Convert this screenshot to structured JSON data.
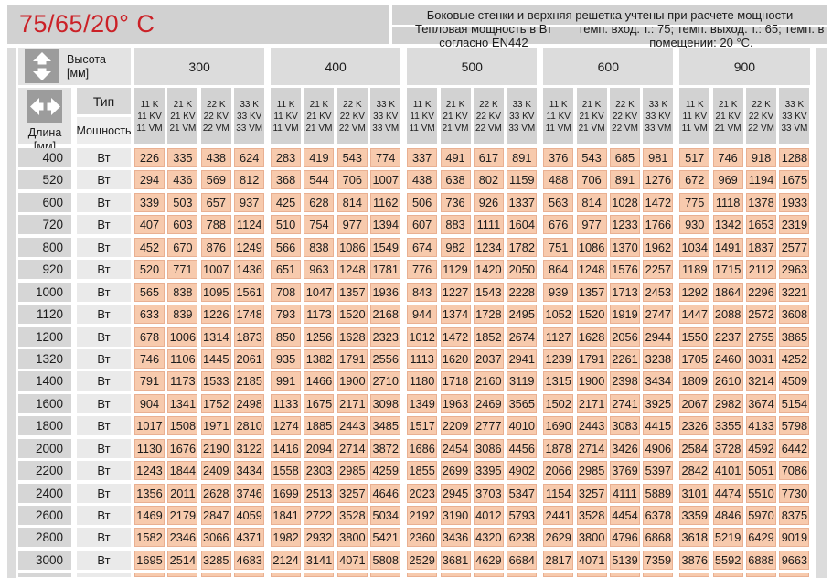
{
  "header": {
    "temp_regime": "75/65/20° C",
    "note": "Боковые стенки и верхняя решетка учтены при расчете мощности",
    "standard": "Тепловая мощность в Вт согласно EN442",
    "conditions": "темп. вход. т.: 75; темп. выход. т.: 65; темп. в помещении: 20 °С."
  },
  "axes": {
    "height_label": "Высота",
    "height_unit": "[мм]",
    "length_label": "Длина",
    "length_unit": "[мм]",
    "type_label": "Тип",
    "power_label": "Мощность",
    "watt_unit": "Вт"
  },
  "colors": {
    "accent_red": "#cb2127",
    "data_cell_fill": "#f7caad",
    "header_gray": "#d1d1d1"
  },
  "heights": [
    "300",
    "400",
    "500",
    "600",
    "900"
  ],
  "types": [
    [
      "11 K",
      "11 KV",
      "11 VM"
    ],
    [
      "21 K",
      "21 KV",
      "21 VM"
    ],
    [
      "22 K",
      "22 KV",
      "22 VM"
    ],
    [
      "33 K",
      "33 KV",
      "33 VM"
    ]
  ],
  "table": {
    "rows": [
      {
        "length": "400",
        "values_by_height": [
          [
            226,
            335,
            438,
            624
          ],
          [
            283,
            419,
            543,
            774
          ],
          [
            337,
            491,
            617,
            891
          ],
          [
            376,
            543,
            685,
            981
          ],
          [
            517,
            746,
            918,
            1288
          ]
        ]
      },
      {
        "length": "520",
        "values_by_height": [
          [
            294,
            436,
            569,
            812
          ],
          [
            368,
            544,
            706,
            1007
          ],
          [
            438,
            638,
            802,
            1159
          ],
          [
            488,
            706,
            891,
            1276
          ],
          [
            672,
            969,
            1194,
            1675
          ]
        ]
      },
      {
        "length": "600",
        "values_by_height": [
          [
            339,
            503,
            657,
            937
          ],
          [
            425,
            628,
            814,
            1162
          ],
          [
            506,
            736,
            926,
            1337
          ],
          [
            563,
            814,
            1028,
            1472
          ],
          [
            775,
            1118,
            1378,
            1933
          ]
        ]
      },
      {
        "length": "720",
        "values_by_height": [
          [
            407,
            603,
            788,
            1124
          ],
          [
            510,
            754,
            977,
            1394
          ],
          [
            607,
            883,
            1111,
            1604
          ],
          [
            676,
            977,
            1233,
            1766
          ],
          [
            930,
            1342,
            1653,
            2319
          ]
        ]
      },
      {
        "length": "800",
        "values_by_height": [
          [
            452,
            670,
            876,
            1249
          ],
          [
            566,
            838,
            1086,
            1549
          ],
          [
            674,
            982,
            1234,
            1782
          ],
          [
            751,
            1086,
            1370,
            1962
          ],
          [
            1034,
            1491,
            1837,
            2577
          ]
        ]
      },
      {
        "length": "920",
        "values_by_height": [
          [
            520,
            771,
            1007,
            1436
          ],
          [
            651,
            963,
            1248,
            1781
          ],
          [
            776,
            1129,
            1420,
            2050
          ],
          [
            864,
            1248,
            1576,
            2257
          ],
          [
            1189,
            1715,
            2112,
            2963
          ]
        ]
      },
      {
        "length": "1000",
        "values_by_height": [
          [
            565,
            838,
            1095,
            1561
          ],
          [
            708,
            1047,
            1357,
            1936
          ],
          [
            843,
            1227,
            1543,
            2228
          ],
          [
            939,
            1357,
            1713,
            2453
          ],
          [
            1292,
            1864,
            2296,
            3221
          ]
        ]
      },
      {
        "length": "1120",
        "values_by_height": [
          [
            633,
            839,
            1226,
            1748
          ],
          [
            793,
            1173,
            1520,
            2168
          ],
          [
            944,
            1374,
            1728,
            2495
          ],
          [
            1052,
            1520,
            1919,
            2747
          ],
          [
            1447,
            2088,
            2572,
            3608
          ]
        ]
      },
      {
        "length": "1200",
        "values_by_height": [
          [
            678,
            1006,
            1314,
            1873
          ],
          [
            850,
            1256,
            1628,
            2323
          ],
          [
            1012,
            1472,
            1852,
            2674
          ],
          [
            1127,
            1628,
            2056,
            2944
          ],
          [
            1550,
            2237,
            2755,
            3865
          ]
        ]
      },
      {
        "length": "1320",
        "values_by_height": [
          [
            746,
            1106,
            1445,
            2061
          ],
          [
            935,
            1382,
            1791,
            2556
          ],
          [
            1113,
            1620,
            2037,
            2941
          ],
          [
            1239,
            1791,
            2261,
            3238
          ],
          [
            1705,
            2460,
            3031,
            4252
          ]
        ]
      },
      {
        "length": "1400",
        "values_by_height": [
          [
            791,
            1173,
            1533,
            2185
          ],
          [
            991,
            1466,
            1900,
            2710
          ],
          [
            1180,
            1718,
            2160,
            3119
          ],
          [
            1315,
            1900,
            2398,
            3434
          ],
          [
            1809,
            2610,
            3214,
            4509
          ]
        ]
      },
      {
        "length": "1600",
        "values_by_height": [
          [
            904,
            1341,
            1752,
            2498
          ],
          [
            1133,
            1675,
            2171,
            3098
          ],
          [
            1349,
            1963,
            2469,
            3565
          ],
          [
            1502,
            2171,
            2741,
            3925
          ],
          [
            2067,
            2982,
            3674,
            5154
          ]
        ]
      },
      {
        "length": "1800",
        "values_by_height": [
          [
            1017,
            1508,
            1971,
            2810
          ],
          [
            1274,
            1885,
            2443,
            3485
          ],
          [
            1517,
            2209,
            2777,
            4010
          ],
          [
            1690,
            2443,
            3083,
            4415
          ],
          [
            2326,
            3355,
            4133,
            5798
          ]
        ]
      },
      {
        "length": "2000",
        "values_by_height": [
          [
            1130,
            1676,
            2190,
            3122
          ],
          [
            1416,
            2094,
            2714,
            3872
          ],
          [
            1686,
            2454,
            3086,
            4456
          ],
          [
            1878,
            2714,
            3426,
            4906
          ],
          [
            2584,
            3728,
            4592,
            6442
          ]
        ]
      },
      {
        "length": "2200",
        "values_by_height": [
          [
            1243,
            1844,
            2409,
            3434
          ],
          [
            1558,
            2303,
            2985,
            4259
          ],
          [
            1855,
            2699,
            3395,
            4902
          ],
          [
            2066,
            2985,
            3769,
            5397
          ],
          [
            2842,
            4101,
            5051,
            7086
          ]
        ]
      },
      {
        "length": "2400",
        "values_by_height": [
          [
            1356,
            2011,
            2628,
            3746
          ],
          [
            1699,
            2513,
            3257,
            4646
          ],
          [
            2023,
            2945,
            3703,
            5347
          ],
          [
            1154,
            3257,
            4111,
            5889
          ],
          [
            3101,
            4474,
            5510,
            7730
          ]
        ]
      },
      {
        "length": "2600",
        "values_by_height": [
          [
            1469,
            2179,
            2847,
            4059
          ],
          [
            1841,
            2722,
            3528,
            5034
          ],
          [
            2192,
            3190,
            4012,
            5793
          ],
          [
            2441,
            3528,
            4454,
            6378
          ],
          [
            3359,
            4846,
            5970,
            8375
          ]
        ]
      },
      {
        "length": "2800",
        "values_by_height": [
          [
            1582,
            2346,
            3066,
            4371
          ],
          [
            1982,
            2932,
            3800,
            5421
          ],
          [
            2360,
            3436,
            4320,
            6238
          ],
          [
            2629,
            3800,
            4796,
            6868
          ],
          [
            3618,
            5219,
            6429,
            9019
          ]
        ]
      },
      {
        "length": "3000",
        "values_by_height": [
          [
            1695,
            2514,
            3285,
            4683
          ],
          [
            2124,
            3141,
            4071,
            5808
          ],
          [
            2529,
            3681,
            4629,
            6684
          ],
          [
            2817,
            4071,
            5139,
            7359
          ],
          [
            3876,
            5592,
            6888,
            9663
          ]
        ]
      }
    ]
  }
}
